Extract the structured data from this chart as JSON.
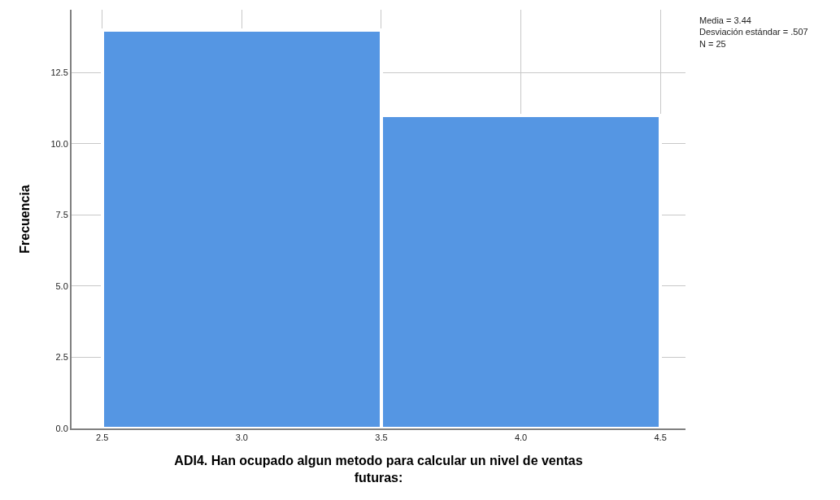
{
  "chart_data": {
    "type": "histogram",
    "xlabel": "ADI4. Han ocupado algun metodo para calcular un nivel de ventas futuras:",
    "ylabel": "Frecuencia",
    "bins": [
      2.5,
      3.5,
      4.5
    ],
    "values": [
      14,
      11
    ],
    "color": "#5596e3",
    "xlim": [
      2.39,
      4.59
    ],
    "xticks": [
      2.5,
      {
        "value": 3,
        "label": "3.0"
      },
      3.5,
      {
        "value": 4,
        "label": "4.0"
      },
      4.5
    ],
    "ylim": [
      0,
      14.7
    ],
    "yticks": [
      {
        "value": 0,
        "label": "0.0"
      },
      2.5,
      {
        "value": 5,
        "label": "5.0"
      },
      7.5,
      {
        "value": 10,
        "label": "10.0"
      },
      12.5
    ],
    "grid": true,
    "annotations": [
      "Media = 3.44\nDesviación estándar = .507\nN = 25"
    ]
  }
}
